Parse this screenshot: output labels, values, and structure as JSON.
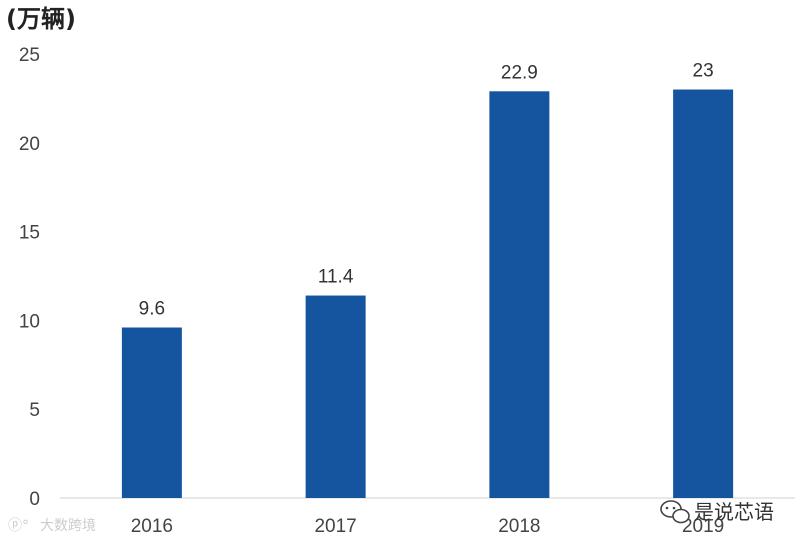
{
  "chart_data": {
    "type": "bar",
    "ylabel": "(万辆)",
    "categories": [
      "2016",
      "2017",
      "2018",
      "2019"
    ],
    "values": [
      9.6,
      11.4,
      22.9,
      23
    ],
    "value_labels": [
      "9.6",
      "11.4",
      "22.9",
      "23"
    ],
    "ylim": [
      0,
      25
    ],
    "yticks": [
      "0",
      "5",
      "10",
      "15",
      "20",
      "25"
    ],
    "grid": false,
    "bar_color": "#1555A0"
  },
  "watermarks": {
    "left": "大数跨境",
    "right": "是说芯语"
  }
}
